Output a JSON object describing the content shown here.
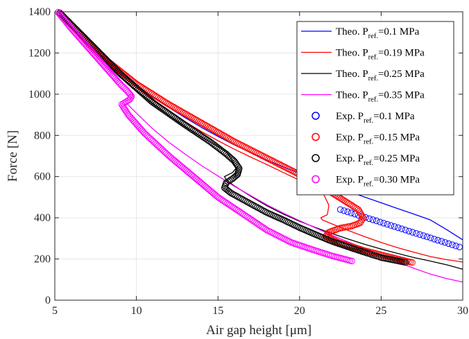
{
  "chart_data": {
    "type": "line",
    "xlabel": "Air gap height [μm]",
    "ylabel": "Force [N]",
    "xlim": [
      5,
      30
    ],
    "ylim": [
      0,
      1400
    ],
    "xticks": [
      5,
      10,
      15,
      20,
      25,
      30
    ],
    "yticks": [
      0,
      200,
      400,
      600,
      800,
      1000,
      1200,
      1400
    ],
    "grid": true,
    "legend_placement": "top-right",
    "series": [
      {
        "name": "Theo. Pref.=0.1 MPa",
        "name_parts": [
          "Theo. P",
          "ref.",
          "=0.1 MPa"
        ],
        "kind": "line",
        "color": "#0000ff",
        "x": [
          5.2,
          6,
          7,
          8,
          9,
          10,
          11,
          12,
          13,
          14,
          15,
          16,
          17,
          18,
          19,
          20,
          21,
          22,
          23,
          24,
          25,
          26,
          27,
          28,
          29,
          30
        ],
        "y": [
          1400,
          1330,
          1250,
          1175,
          1108,
          1045,
          988,
          935,
          885,
          838,
          795,
          754,
          716,
          680,
          647,
          616,
          585,
          556,
          528,
          500,
          473,
          445,
          418,
          390,
          343,
          293
        ]
      },
      {
        "name": "Theo. Pref.=0.19 MPa",
        "name_parts": [
          "Theo. P",
          "ref.",
          "=0.19 MPa"
        ],
        "kind": "line",
        "color": "#ff0000",
        "x": [
          5.2,
          6,
          7,
          8,
          9,
          10,
          11,
          12,
          13,
          14,
          15,
          16,
          17,
          18,
          19,
          20,
          21,
          21.5,
          21.8,
          21.7,
          21.3,
          21.4,
          22,
          23,
          24,
          25,
          26,
          27,
          28,
          29,
          30
        ],
        "y": [
          1400,
          1328,
          1245,
          1168,
          1098,
          1033,
          972,
          917,
          866,
          818,
          774,
          733,
          695,
          658,
          620,
          582,
          540,
          510,
          460,
          415,
          400,
          390,
          370,
          338,
          308,
          280,
          255,
          233,
          212,
          197,
          185
        ]
      },
      {
        "name": "Theo. Pref.=0.25 MPa",
        "name_parts": [
          "Theo. P",
          "ref.",
          "=0.25 MPa"
        ],
        "kind": "line",
        "color": "#000000",
        "x": [
          5.2,
          6,
          7,
          8,
          9,
          10,
          11,
          12,
          13,
          14,
          15,
          15.5,
          15.8,
          16.1,
          15.9,
          15.4,
          15.5,
          16,
          17,
          18,
          19,
          20,
          21,
          22,
          23,
          24,
          25,
          26,
          27,
          28,
          29,
          30
        ],
        "y": [
          1400,
          1325,
          1240,
          1160,
          1085,
          1018,
          955,
          897,
          843,
          793,
          746,
          720,
          690,
          640,
          620,
          600,
          585,
          555,
          505,
          458,
          418,
          383,
          352,
          323,
          296,
          271,
          248,
          227,
          207,
          190,
          172,
          150
        ]
      },
      {
        "name": "Theo. Pref.=0.35 MPa",
        "name_parts": [
          "Theo. P",
          "ref.",
          "=0.35 MPa"
        ],
        "kind": "line",
        "color": "#ff00ff",
        "x": [
          5.2,
          6,
          7,
          8,
          9,
          9.5,
          9.7,
          9.8,
          9.6,
          9.3,
          9.5,
          10,
          11,
          12,
          13,
          14,
          15,
          16,
          17,
          18,
          19,
          20,
          21,
          22,
          23,
          24,
          25,
          26,
          27,
          28,
          29,
          30
        ],
        "y": [
          1400,
          1320,
          1230,
          1145,
          1065,
          1030,
          1010,
          990,
          975,
          965,
          948,
          908,
          832,
          766,
          708,
          653,
          603,
          553,
          508,
          463,
          423,
          386,
          350,
          315,
          282,
          250,
          218,
          185,
          155,
          127,
          105,
          88
        ]
      },
      {
        "name": "Exp. Pref.=0.1 MPa",
        "name_parts": [
          "Exp. P",
          "ref.",
          "=0.1 MPa"
        ],
        "kind": "markers",
        "color": "#0000ff",
        "x": [
          22.5,
          29.8
        ],
        "y": [
          440,
          258
        ]
      },
      {
        "name": "Exp. Pref.=0.15 MPa",
        "name_parts": [
          "Exp. P",
          "ref.",
          "=0.15 MPa"
        ],
        "kind": "markers",
        "color": "#ff0000",
        "x": [
          5.3,
          8,
          10,
          12,
          14,
          16,
          18,
          20,
          21,
          22,
          23,
          23.6,
          23.9,
          23.7,
          23.2,
          22.5,
          21.8,
          21.6,
          22.4,
          24,
          25.5,
          26.9
        ],
        "y": [
          1395,
          1175,
          1050,
          950,
          860,
          770,
          690,
          610,
          565,
          520,
          470,
          440,
          400,
          375,
          360,
          350,
          330,
          310,
          280,
          240,
          210,
          183
        ]
      },
      {
        "name": "Exp. Pref.=0.25 MPa",
        "name_parts": [
          "Exp. P",
          "ref.",
          "=0.25 MPa"
        ],
        "kind": "markers",
        "color": "#000000",
        "x": [
          5.3,
          7,
          9,
          11,
          13,
          14.5,
          15.5,
          16,
          16.3,
          16.2,
          15.9,
          15.5,
          15.4,
          15.8,
          17,
          18,
          19,
          20,
          21,
          22,
          23,
          24,
          25,
          26.5
        ],
        "y": [
          1395,
          1260,
          1100,
          960,
          850,
          770,
          710,
          675,
          640,
          610,
          590,
          570,
          545,
          520,
          468,
          425,
          390,
          352,
          318,
          285,
          258,
          232,
          207,
          183
        ]
      },
      {
        "name": "Exp. Pref.=0.30 MPa",
        "name_parts": [
          "Exp. P",
          "ref.",
          "=0.30 MPa"
        ],
        "kind": "markers",
        "color": "#ff00ff",
        "x": [
          5.2,
          6,
          7,
          8,
          9,
          9.5,
          9.7,
          9.6,
          9.3,
          9.1,
          9.5,
          10.5,
          12,
          13.5,
          15,
          16.5,
          18,
          19.5,
          21,
          22,
          23.2
        ],
        "y": [
          1398,
          1320,
          1230,
          1140,
          1050,
          1010,
          990,
          975,
          960,
          950,
          900,
          810,
          700,
          600,
          500,
          420,
          340,
          280,
          240,
          215,
          190
        ]
      }
    ]
  }
}
